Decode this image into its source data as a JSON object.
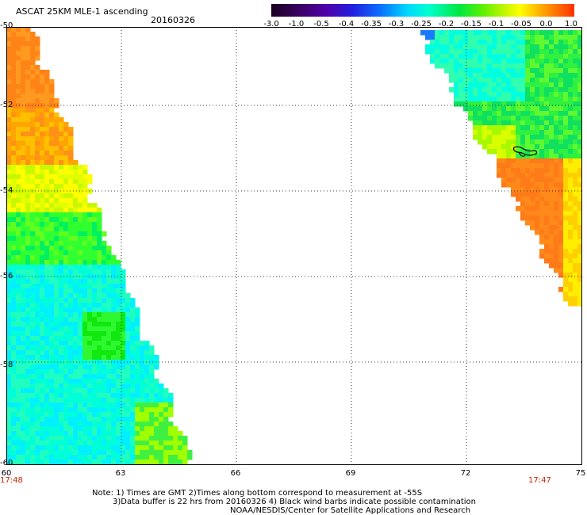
{
  "header": {
    "title": "ASCAT 25KM MLE-1 ascending",
    "date": "20160326"
  },
  "legend": {
    "ticks": [
      "-3.0",
      "-1.0",
      "-0.5",
      "-0.4",
      "-0.35",
      "-0.3",
      "-0.25",
      "-0.2",
      "-0.15",
      "-0.1",
      "-0.05",
      "0.0",
      "1.0"
    ]
  },
  "map": {
    "lat_labels": [
      "-50",
      "-52",
      "-54",
      "-56",
      "-58",
      "-60"
    ],
    "lon_labels": [
      "60",
      "63",
      "66",
      "69",
      "72",
      "75"
    ],
    "time_left": "17:48",
    "time_right": "17:47"
  },
  "notes": {
    "line1": "Note: 1) Times are GMT 2)Times along bottom correspond to measurement at -55S",
    "line2": "3)Data buffer is 22 hrs from 20160326 4) Black wind barbs indicate possible contamination",
    "line3": "NOAA/NESDIS/Center for Satellite Applications and Research"
  }
}
